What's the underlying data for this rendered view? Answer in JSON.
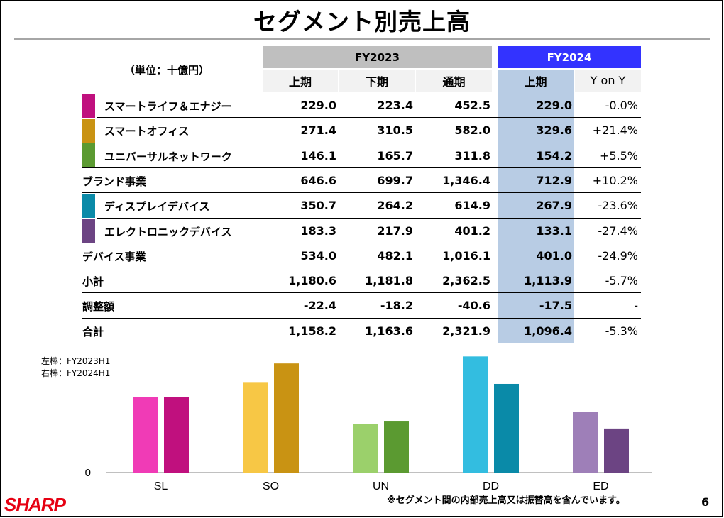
{
  "title": "セグメント別売上高",
  "unit_label": "（単位：十億円）",
  "header": {
    "fy2023": "FY2023",
    "fy2024": "FY2024",
    "cols": [
      "上期",
      "下期",
      "通期",
      "上期",
      "Y on Y"
    ]
  },
  "rows": [
    {
      "label": "スマートライフ＆エナジー",
      "swatch": "#c0107e",
      "indent": true,
      "values": [
        "229.0",
        "223.4",
        "452.5",
        "229.0",
        "-0.0%"
      ]
    },
    {
      "label": "スマートオフィス",
      "swatch": "#c99313",
      "indent": true,
      "values": [
        "271.4",
        "310.5",
        "582.0",
        "329.6",
        "+21.4%"
      ]
    },
    {
      "label": "ユニバーサルネットワーク",
      "swatch": "#5b9a31",
      "indent": true,
      "values": [
        "146.1",
        "165.7",
        "311.8",
        "154.2",
        "+5.5%"
      ]
    },
    {
      "label": "ブランド事業",
      "swatch": "",
      "indent": false,
      "values": [
        "646.6",
        "699.7",
        "1,346.4",
        "712.9",
        "+10.2%"
      ]
    },
    {
      "label": "ディスプレイデバイス",
      "swatch": "#0a8aa8",
      "indent": true,
      "values": [
        "350.7",
        "264.2",
        "614.9",
        "267.9",
        "-23.6%"
      ]
    },
    {
      "label": "エレクトロニックデバイス",
      "swatch": "#6c4483",
      "indent": true,
      "values": [
        "183.3",
        "217.9",
        "401.2",
        "133.1",
        "-27.4%"
      ]
    },
    {
      "label": "デバイス事業",
      "swatch": "",
      "indent": false,
      "values": [
        "534.0",
        "482.1",
        "1,016.1",
        "401.0",
        "-24.9%"
      ]
    },
    {
      "label": "小計",
      "swatch": "",
      "indent": false,
      "values": [
        "1,180.6",
        "1,181.8",
        "2,362.5",
        "1,113.9",
        "-5.7%"
      ]
    },
    {
      "label": "調整額",
      "swatch": "",
      "indent": false,
      "values": [
        "-22.4",
        "-18.2",
        "-40.6",
        "-17.5",
        "-"
      ]
    },
    {
      "label": "合計",
      "swatch": "",
      "indent": false,
      "values": [
        "1,158.2",
        "1,163.6",
        "2,321.9",
        "1,096.4",
        "-5.3%"
      ]
    }
  ],
  "chart_note": [
    "左棒：FY2023H1",
    "右棒：FY2024H1"
  ],
  "chart_data": {
    "type": "bar",
    "categories": [
      "SL",
      "SO",
      "UN",
      "DD",
      "ED"
    ],
    "series": [
      {
        "name": "FY2023H1",
        "values": [
          229.0,
          271.4,
          146.1,
          350.7,
          183.3
        ],
        "colors": [
          "#f03bb6",
          "#f7c745",
          "#9bd06b",
          "#33bde0",
          "#9e7fb8"
        ]
      },
      {
        "name": "FY2024H1",
        "values": [
          229.0,
          329.6,
          154.2,
          267.9,
          133.1
        ],
        "colors": [
          "#c0107e",
          "#c99313",
          "#5b9a31",
          "#0a8aa8",
          "#6c4483"
        ]
      }
    ],
    "y_tick_label": "0",
    "ylim": [
      0,
      360
    ]
  },
  "footnote": "※セグメント間の内部売上高又は振替高を含んでいます。",
  "page_number": "6",
  "logo_text": "SHARP",
  "logo_color": "#e60012"
}
